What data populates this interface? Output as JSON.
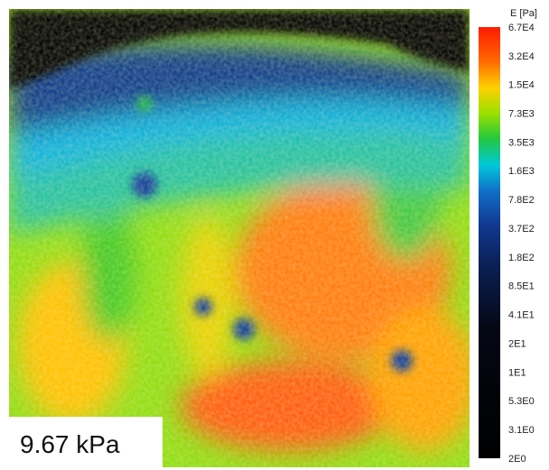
{
  "image_label": "9.67 kPa",
  "colorbar": {
    "title": "E [Pa]",
    "ticks": [
      "6.7E4",
      "3.2E4",
      "1.5E4",
      "7.3E3",
      "3.5E3",
      "1.6E3",
      "7.8E2",
      "3.7E2",
      "1.8E2",
      "8.5E1",
      "4.1E1",
      "2E1",
      "1E1",
      "5.3E0",
      "3.1E0",
      "2E0"
    ]
  }
}
